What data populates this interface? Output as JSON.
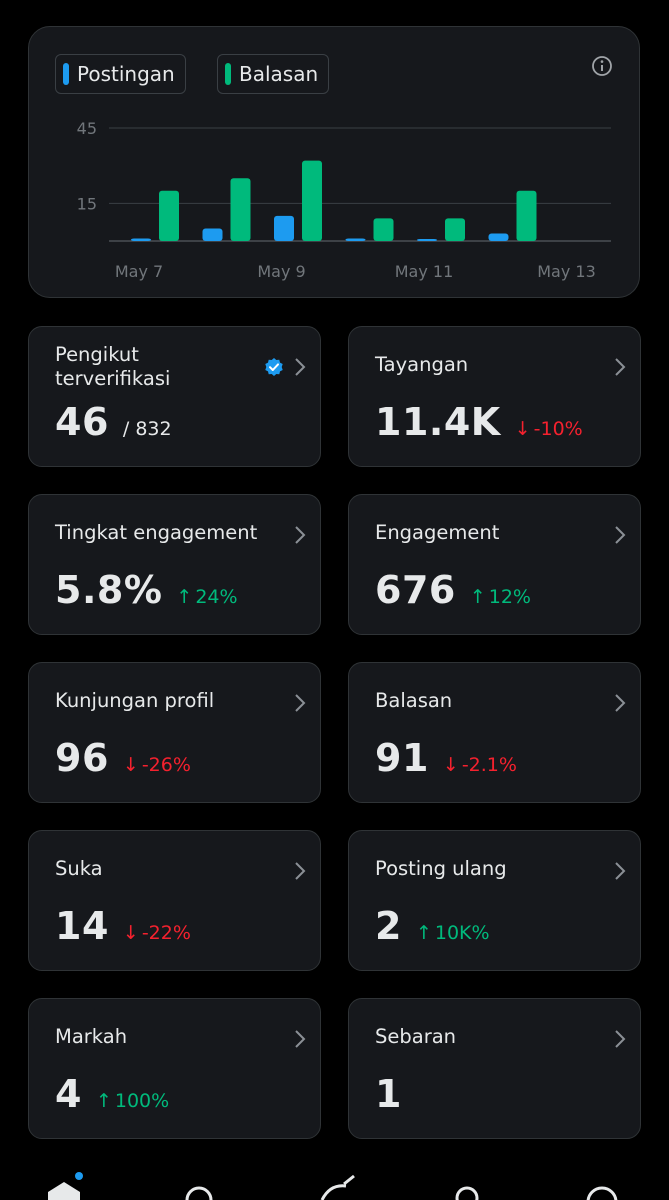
{
  "chart_data": {
    "type": "bar",
    "categories": [
      "May 7",
      "May 8",
      "May 9",
      "May 10",
      "May 11",
      "May 12"
    ],
    "series": [
      {
        "name": "Postingan",
        "color": "#1d9bf0",
        "values": [
          1,
          5,
          10,
          1,
          0.5,
          3
        ]
      },
      {
        "name": "Balasan",
        "color": "#00ba7c",
        "values": [
          20,
          25,
          32,
          9,
          9,
          20
        ]
      }
    ],
    "x_tick_labels": [
      "May 7",
      "May 9",
      "May 11",
      "May 13"
    ],
    "y_ticks": [
      15,
      45
    ],
    "ylim": [
      0,
      45
    ],
    "grid": true,
    "legend_position": "top-left"
  },
  "legend": {
    "postingan": "Postingan",
    "balasan": "Balasan",
    "postingan_color": "#1d9bf0",
    "balasan_color": "#00ba7c"
  },
  "cards": {
    "pengikut": {
      "label": "Pengikut terverifikasi",
      "value": "46",
      "sub": "/ 832"
    },
    "tayangan": {
      "label": "Tayangan",
      "value": "11.4K",
      "arrow": "↓",
      "delta": "-10%"
    },
    "tingkat": {
      "label": "Tingkat engagement",
      "value": "5.8%",
      "arrow": "↑",
      "delta": "24%"
    },
    "engagement": {
      "label": "Engagement",
      "value": "676",
      "arrow": "↑",
      "delta": "12%"
    },
    "kunjungan": {
      "label": "Kunjungan profil",
      "value": "96",
      "arrow": "↓",
      "delta": "-26%"
    },
    "balasan": {
      "label": "Balasan",
      "value": "91",
      "arrow": "↓",
      "delta": "-2.1%"
    },
    "suka": {
      "label": "Suka",
      "value": "14",
      "arrow": "↓",
      "delta": "-22%"
    },
    "posting_ulang": {
      "label": "Posting ulang",
      "value": "2",
      "arrow": "↑",
      "delta": "10K%"
    },
    "markah": {
      "label": "Markah",
      "value": "4",
      "arrow": "↑",
      "delta": "100%"
    },
    "sebaran": {
      "label": "Sebaran",
      "value": "1"
    }
  },
  "colors": {
    "up": "#00ba7c",
    "down": "#f4212e",
    "verified": "#1d9bf0"
  },
  "nav_icons": [
    "home-icon",
    "search-icon",
    "grok-icon",
    "people-icon",
    "notifications-icon"
  ]
}
